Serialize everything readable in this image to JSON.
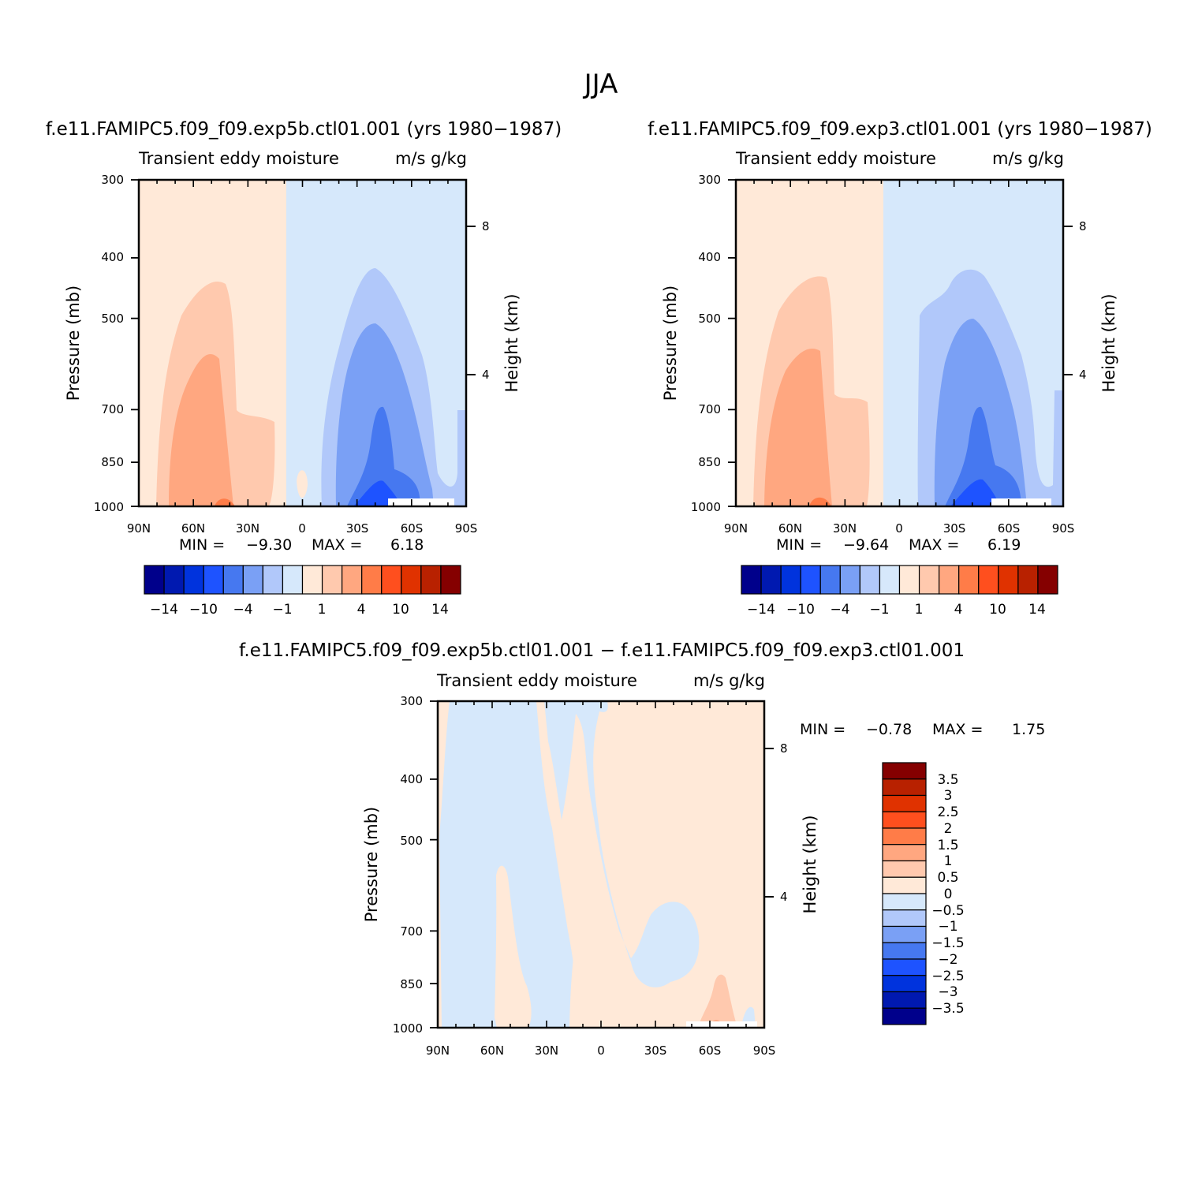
{
  "figure": {
    "title": "JJA"
  },
  "colors": {
    "levels_main": [
      "#00008b",
      "#0019b0",
      "#0033dd",
      "#1e53ff",
      "#4678f0",
      "#7aa0f5",
      "#b1c8fa",
      "#d6e8fb",
      "#ffe9d8",
      "#ffc9ae",
      "#ffa780",
      "#ff7c48",
      "#ff4f1e",
      "#e03200",
      "#b82100",
      "#850000"
    ],
    "levels_diff": [
      "#00008b",
      "#0019b0",
      "#0033dd",
      "#1e53ff",
      "#4678f0",
      "#7aa0f5",
      "#b1c8fa",
      "#d6e8fb",
      "#ffe9d8",
      "#ffc9ae",
      "#ffa780",
      "#ff7c48",
      "#ff4f1e",
      "#e03200",
      "#b82100",
      "#850000"
    ]
  },
  "panels": [
    {
      "id": "top-left",
      "case": "f.e11.FAMIPC5.f09_f09.exp5b.ctl01.001 (yrs 1980−1987)",
      "title_left": "Transient eddy moisture",
      "title_right": "m/s  g/kg",
      "ylabel": "Pressure (mb)",
      "ylabel_right": "Height (km)",
      "stats": {
        "min_label": "MIN =",
        "min": "−9.30",
        "max_label": "MAX =",
        "max": "6.18"
      }
    },
    {
      "id": "top-right",
      "case": "f.e11.FAMIPC5.f09_f09.exp3.ctl01.001 (yrs 1980−1987)",
      "title_left": "Transient eddy moisture",
      "title_right": "m/s  g/kg",
      "ylabel": "Pressure (mb)",
      "ylabel_right": "Height (km)",
      "stats": {
        "min_label": "MIN =",
        "min": "−9.64",
        "max_label": "MAX =",
        "max": "6.19"
      }
    },
    {
      "id": "bottom",
      "case": "f.e11.FAMIPC5.f09_f09.exp5b.ctl01.001 − f.e11.FAMIPC5.f09_f09.exp3.ctl01.001",
      "title_left": "Transient eddy moisture",
      "title_right": "m/s  g/kg",
      "ylabel": "Pressure (mb)",
      "ylabel_right": "Height (km)",
      "stats": {
        "min_label": "MIN =",
        "min": "−0.78",
        "max_label": "MAX =",
        "max": "1.75"
      }
    }
  ],
  "axes": {
    "x_ticks": [
      "90N",
      "60N",
      "30N",
      "0",
      "30S",
      "60S",
      "90S"
    ],
    "x_values": [
      90,
      60,
      30,
      0,
      -30,
      -60,
      -90
    ],
    "y_ticks": [
      "300",
      "400",
      "500",
      "700",
      "850",
      "1000"
    ],
    "y_values": [
      300,
      400,
      500,
      700,
      850,
      1000
    ],
    "y_right_ticks": [
      "8",
      "4"
    ],
    "y_right_values": [
      8,
      4
    ]
  },
  "colorbars": {
    "main_labels": [
      "−14",
      "−10",
      "−4",
      "−1",
      "1",
      "4",
      "10",
      "14"
    ],
    "diff_labels": [
      "3.5",
      "3",
      "2.5",
      "2",
      "1.5",
      "1",
      "0.5",
      "0",
      "−0.5",
      "−1",
      "−1.5",
      "−2",
      "−2.5",
      "−3",
      "−3.5"
    ]
  },
  "chart_data": [
    {
      "type": "heatmap",
      "title": "Transient eddy moisture",
      "xlabel": "",
      "ylabel": "Pressure (mb)",
      "xlim": [
        90,
        -90
      ],
      "ylim": [
        1000,
        300
      ],
      "y_scale": "log",
      "grid": false,
      "min": -9.3,
      "max": 6.18,
      "contour_levels": [
        -14,
        -12,
        -10,
        -8,
        -4,
        -2,
        -1,
        0,
        1,
        2,
        4,
        8,
        10,
        12,
        14
      ],
      "regions": [
        {
          "level": 0.5,
          "lat": [
            90,
            10
          ],
          "p": [
            300,
            1000
          ]
        },
        {
          "level": -0.5,
          "lat": [
            10,
            -90
          ],
          "p": [
            300,
            1000
          ]
        },
        {
          "level": 1.5,
          "lat": [
            72,
            48
          ],
          "p": [
            450,
            1000
          ]
        },
        {
          "level": 3,
          "lat": [
            68,
            55
          ],
          "p": [
            540,
            1000
          ]
        },
        {
          "level": -1.5,
          "lat": [
            -20,
            -55
          ],
          "p": [
            430,
            1000
          ]
        },
        {
          "level": -3,
          "lat": [
            -25,
            -45
          ],
          "p": [
            490,
            1000
          ]
        },
        {
          "level": -6,
          "lat": [
            -38,
            -52
          ],
          "p": [
            700,
            1000
          ]
        }
      ]
    },
    {
      "type": "heatmap",
      "title": "Transient eddy moisture",
      "xlabel": "",
      "ylabel": "Pressure (mb)",
      "xlim": [
        90,
        -90
      ],
      "ylim": [
        1000,
        300
      ],
      "y_scale": "log",
      "grid": false,
      "min": -9.64,
      "max": 6.19,
      "contour_levels": [
        -14,
        -12,
        -10,
        -8,
        -4,
        -2,
        -1,
        0,
        1,
        2,
        4,
        8,
        10,
        12,
        14
      ],
      "regions": [
        {
          "level": 0.5,
          "lat": [
            90,
            10
          ],
          "p": [
            300,
            1000
          ]
        },
        {
          "level": -0.5,
          "lat": [
            10,
            -90
          ],
          "p": [
            300,
            1000
          ]
        },
        {
          "level": 1.5,
          "lat": [
            72,
            48
          ],
          "p": [
            440,
            1000
          ]
        },
        {
          "level": 3,
          "lat": [
            68,
            55
          ],
          "p": [
            540,
            1000
          ]
        },
        {
          "level": -1.5,
          "lat": [
            -20,
            -55
          ],
          "p": [
            420,
            1000
          ]
        },
        {
          "level": -3,
          "lat": [
            -25,
            -45
          ],
          "p": [
            490,
            1000
          ]
        },
        {
          "level": -6,
          "lat": [
            -38,
            -52
          ],
          "p": [
            700,
            1000
          ]
        }
      ]
    },
    {
      "type": "heatmap",
      "title": "Transient eddy moisture",
      "xlabel": "",
      "ylabel": "Pressure (mb)",
      "xlim": [
        90,
        -90
      ],
      "ylim": [
        1000,
        300
      ],
      "y_scale": "log",
      "grid": false,
      "min": -0.78,
      "max": 1.75,
      "contour_levels": [
        -3.5,
        -3,
        -2.5,
        -2,
        -1.5,
        -1,
        -0.5,
        0,
        0.5,
        1,
        1.5,
        2,
        2.5,
        3,
        3.5
      ],
      "regions": [
        {
          "level": 0.25,
          "lat": [
            90,
            85
          ],
          "p": [
            300,
            520
          ]
        },
        {
          "level": -0.25,
          "lat": [
            85,
            35
          ],
          "p": [
            300,
            1000
          ]
        },
        {
          "level": 0.25,
          "lat": [
            35,
            -90
          ],
          "p": [
            300,
            1000
          ]
        },
        {
          "level": -0.25,
          "lat": [
            30,
            10
          ],
          "p": [
            380,
            1000
          ]
        },
        {
          "level": -0.25,
          "lat": [
            -25,
            -55
          ],
          "p": [
            660,
            950
          ]
        },
        {
          "level": 0.75,
          "lat": [
            -58,
            -68
          ],
          "p": [
            880,
            1000
          ]
        }
      ]
    }
  ]
}
